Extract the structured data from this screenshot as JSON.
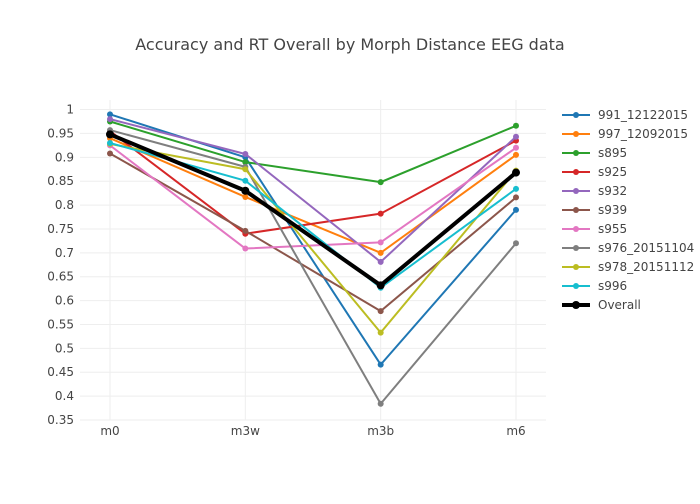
{
  "chart_data": {
    "type": "line",
    "title": "Accuracy and RT Overall by Morph Distance EEG data",
    "xlabel": "",
    "ylabel": "",
    "categories": [
      "m0",
      "m3w",
      "m3b",
      "m6"
    ],
    "ylim": [
      0.35,
      1.02
    ],
    "yticks": [
      0.35,
      0.4,
      0.45,
      0.5,
      0.55,
      0.6,
      0.65,
      0.7,
      0.75,
      0.8,
      0.85,
      0.9,
      0.95,
      1
    ],
    "ytick_labels": [
      "0.35",
      "0.4",
      "0.45",
      "0.5",
      "0.55",
      "0.6",
      "0.65",
      "0.7",
      "0.75",
      "0.8",
      "0.85",
      "0.9",
      "0.95",
      "1"
    ],
    "grid": true,
    "legend_position": "right",
    "series": [
      {
        "name": "991_12122015",
        "color": "#1f77b4",
        "values": [
          0.99,
          0.9,
          0.466,
          0.79
        ]
      },
      {
        "name": "997_12092015",
        "color": "#ff7f0e",
        "values": [
          0.94,
          0.817,
          0.7,
          0.905
        ]
      },
      {
        "name": "s895",
        "color": "#2ca02c",
        "values": [
          0.975,
          0.89,
          0.848,
          0.966
        ]
      },
      {
        "name": "s925",
        "color": "#d62728",
        "values": [
          0.955,
          0.74,
          0.782,
          0.935
        ]
      },
      {
        "name": "s932",
        "color": "#9467bd",
        "values": [
          0.98,
          0.907,
          0.681,
          0.943
        ]
      },
      {
        "name": "s939",
        "color": "#8c564b",
        "values": [
          0.908,
          0.746,
          0.578,
          0.816
        ]
      },
      {
        "name": "s955",
        "color": "#e377c2",
        "values": [
          0.925,
          0.709,
          0.722,
          0.92
        ]
      },
      {
        "name": "s976_20151104",
        "color": "#7f7f7f",
        "values": [
          0.957,
          0.88,
          0.384,
          0.72
        ]
      },
      {
        "name": "s978_20151112",
        "color": "#bcbd22",
        "values": [
          0.928,
          0.875,
          0.533,
          0.872
        ]
      },
      {
        "name": "s996",
        "color": "#17becf",
        "values": [
          0.93,
          0.851,
          0.627,
          0.834
        ]
      },
      {
        "name": "Overall",
        "color": "#000000",
        "values": [
          0.948,
          0.83,
          0.632,
          0.868
        ],
        "bold": true
      }
    ]
  }
}
